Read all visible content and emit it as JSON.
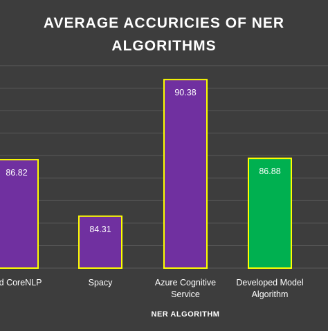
{
  "chart_data": {
    "type": "bar",
    "title": "AVERAGE ACCURICIES OF NER ALGORITHMS",
    "title_lines": [
      "AVERAGE ACCURICIES OF NER",
      "ALGORITHMS"
    ],
    "xlabel": "NER ALGORITHM",
    "ylabel": "",
    "categories": [
      "Stanford CoreNLP",
      "Spacy",
      "Azure Cognitive Service",
      "Developed Model Algorithm"
    ],
    "category_lines": [
      [
        "ord CoreNLP"
      ],
      [
        "Spacy"
      ],
      [
        "Azure Cognitive",
        "Service"
      ],
      [
        "Developed Model",
        "Algorithm"
      ]
    ],
    "values": [
      86.82,
      84.31,
      90.38,
      86.88
    ],
    "value_labels": [
      "86.82",
      "84.31",
      "90.38",
      "86.88"
    ],
    "ylim": [
      82,
      91
    ],
    "grid": true,
    "legend": "none",
    "colors": {
      "background": "#3d3d3d",
      "gridline": "#5a5a5a",
      "bar_default": "#7030a0",
      "bar_highlight": "#00b050",
      "bar_border": "#ffff00",
      "text": "#ffffff"
    },
    "bar_fills": [
      "#7030a0",
      "#7030a0",
      "#7030a0",
      "#00b050"
    ]
  }
}
